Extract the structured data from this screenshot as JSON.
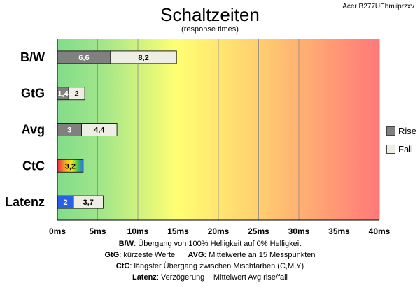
{
  "header": {
    "title": "Schaltzeiten",
    "subtitle": "(response times)",
    "model": "Acer B277UEbmiiprzxv"
  },
  "chart_data": {
    "type": "bar",
    "orientation": "horizontal",
    "stacked": true,
    "categories": [
      "B/W",
      "GtG",
      "Avg",
      "CtC",
      "Latenz"
    ],
    "series": [
      {
        "name": "Rise",
        "values": [
          6.6,
          1.4,
          3,
          3.2,
          2
        ],
        "labels": [
          "6,6",
          "1,4",
          "3",
          "3,2",
          "2"
        ]
      },
      {
        "name": "Fall",
        "values": [
          8.2,
          2,
          4.4,
          null,
          3.7
        ],
        "labels": [
          "8,2",
          "2",
          "4,4",
          "",
          "3,7"
        ]
      }
    ],
    "xlim": [
      0,
      40
    ],
    "xticks": [
      0,
      5,
      10,
      15,
      20,
      25,
      30,
      35,
      40
    ],
    "xtick_labels": [
      "0ms",
      "5ms",
      "10ms",
      "15ms",
      "20ms",
      "25ms",
      "30ms",
      "35ms",
      "40ms"
    ],
    "xlabel": "",
    "ylabel": "",
    "grid": true,
    "legend_position": "right",
    "colors": {
      "rise": "#808080",
      "fall": "#eeeee4",
      "ctc": "rainbow",
      "latency_rise": "#2a60e8",
      "bg_good": "#82dc8a",
      "bg_mid": "#ffff73",
      "bg_bad": "#ff7878"
    }
  },
  "legend": {
    "rise_label": "Rise",
    "fall_label": "Fall"
  },
  "notes": {
    "line1_key": "B/W",
    "line1_text": ":  Übergang von 100% Helligkeit auf 0% Helligkeit",
    "line2_key": "GtG",
    "line2_text": ": kürzeste  Werte",
    "line2_key2": "AVG:",
    "line2_text2": " Mittelwerte  an 15 Messpunkten",
    "line3_key": "CtC",
    "line3_text": ": längster Übergang  zwischen Mischfarben  (C,M,Y)",
    "line4_key": "Latenz",
    "line4_text": ": Verzögerung  + Mittelwert Avg rise/fall"
  }
}
